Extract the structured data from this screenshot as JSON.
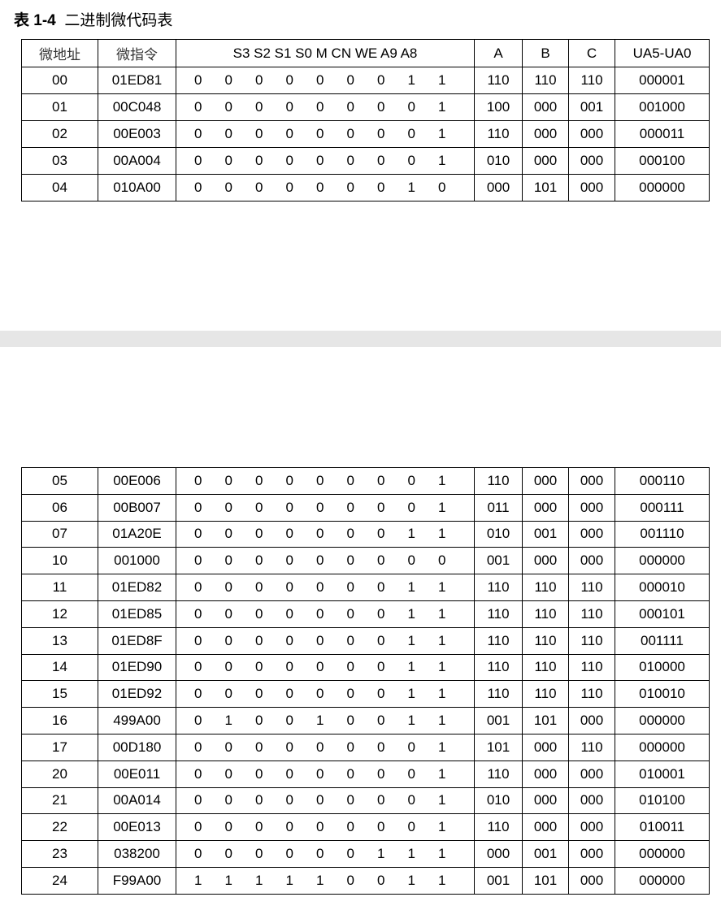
{
  "title": {
    "label": "表 1-4",
    "text": "二进制微代码表"
  },
  "headers": [
    "微地址",
    "微指令",
    "S3 S2 S1 S0 M CN WE A9 A8",
    "A",
    "B",
    "C",
    "UA5-UA0"
  ],
  "table1": [
    [
      "00",
      "01ED81",
      "0 0 0 0 0 0 0 1 1",
      "110",
      "110",
      "110",
      "000001"
    ],
    [
      "01",
      "00C048",
      "0 0 0 0 0 0 0 0 1",
      "100",
      "000",
      "001",
      "001000"
    ],
    [
      "02",
      "00E003",
      "0 0 0 0 0 0 0 0 1",
      "110",
      "000",
      "000",
      "000011"
    ],
    [
      "03",
      "00A004",
      "0 0 0 0 0 0 0 0 1",
      "010",
      "000",
      "000",
      "000100"
    ],
    [
      "04",
      "010A00",
      "0 0 0 0 0 0 0 1 0",
      "000",
      "101",
      "000",
      "000000"
    ]
  ],
  "table2": [
    [
      "05",
      "00E006",
      "0 0 0 0 0 0 0 0 1",
      "110",
      "000",
      "000",
      "000110"
    ],
    [
      "06",
      "00B007",
      "0 0 0 0 0 0 0 0 1",
      "011",
      "000",
      "000",
      "000111"
    ],
    [
      "07",
      "01A20E",
      "0 0 0 0 0 0 0 1 1",
      "010",
      "001",
      "000",
      "001110"
    ],
    [
      "10",
      "001000",
      "0 0 0 0 0 0 0 0 0",
      "001",
      "000",
      "000",
      "000000"
    ],
    [
      "11",
      "01ED82",
      "0 0 0 0 0 0 0 1 1",
      "110",
      "110",
      "110",
      "000010"
    ],
    [
      "12",
      "01ED85",
      "0 0 0 0 0 0 0 1 1",
      "110",
      "110",
      "110",
      "000101"
    ],
    [
      "13",
      "01ED8F",
      "0 0 0 0 0 0 0 1 1",
      "110",
      "110",
      "110",
      "001111"
    ],
    [
      "14",
      "01ED90",
      "0 0 0 0 0 0 0 1 1",
      "110",
      "110",
      "110",
      "010000"
    ],
    [
      "15",
      "01ED92",
      "0 0 0 0 0 0 0 1 1",
      "110",
      "110",
      "110",
      "010010"
    ],
    [
      "16",
      "499A00",
      "0 1 0 0 1 0 0 1 1",
      "001",
      "101",
      "000",
      "000000"
    ],
    [
      "17",
      "00D180",
      "0 0 0 0 0 0 0 0 1",
      "101",
      "000",
      "110",
      "000000"
    ],
    [
      "20",
      "00E011",
      "0 0 0 0 0 0 0 0 1",
      "110",
      "000",
      "000",
      "010001"
    ],
    [
      "21",
      "00A014",
      "0 0 0 0 0 0 0 0 1",
      "010",
      "000",
      "000",
      "010100"
    ],
    [
      "22",
      "00E013",
      "0 0 0 0 0 0 0 0 1",
      "110",
      "000",
      "000",
      "010011"
    ],
    [
      "23",
      "038200",
      "0 0 0 0 0 0 1 1 1",
      "000",
      "001",
      "000",
      "000000"
    ],
    [
      "24",
      "F99A00",
      "1 1 1 1 1 0 0 1 1",
      "001",
      "101",
      "000",
      "000000"
    ]
  ]
}
